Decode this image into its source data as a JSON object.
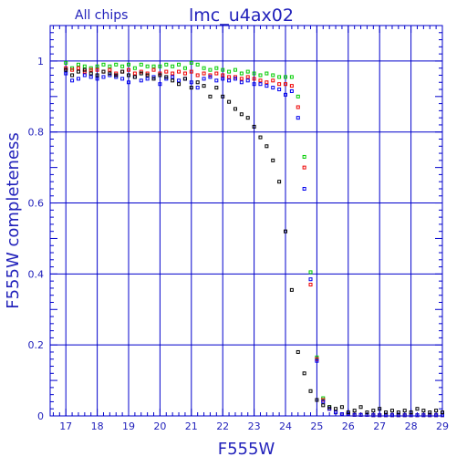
{
  "chart_data": {
    "type": "scatter",
    "title": "lmc_u4ax02",
    "subtitle": "All chips",
    "xlabel": "F555W",
    "ylabel": "F555W completeness",
    "xlim": [
      16.5,
      29
    ],
    "ylim": [
      0,
      1.1
    ],
    "grid": true,
    "x_ticks": [
      17,
      18,
      19,
      20,
      21,
      22,
      23,
      24,
      25,
      26,
      27,
      28,
      29
    ],
    "x_tick_labels": [
      "17",
      "18",
      "19",
      "20",
      "21",
      "22",
      "23",
      "24",
      "25",
      "26",
      "27",
      "28",
      "29"
    ],
    "y_ticks": [
      0,
      0.2,
      0.4,
      0.6,
      0.8,
      1
    ],
    "y_tick_labels": [
      "0",
      "0.2",
      "0.4",
      "0.6",
      "0.8",
      "1"
    ],
    "series": [
      {
        "color": "#00cc00",
        "x": [
          17.0,
          17.2,
          17.4,
          17.6,
          17.8,
          18.0,
          18.2,
          18.4,
          18.6,
          18.8,
          19.0,
          19.2,
          19.4,
          19.6,
          19.8,
          20.0,
          20.2,
          20.4,
          20.6,
          20.8,
          21.0,
          21.2,
          21.4,
          21.6,
          21.8,
          22.0,
          22.2,
          22.4,
          22.6,
          22.8,
          23.0,
          23.2,
          23.4,
          23.6,
          23.8,
          24.0,
          24.2,
          24.4,
          24.6,
          24.8,
          25.0,
          25.2,
          25.4,
          25.6,
          25.8,
          26.0,
          26.2,
          26.4,
          26.6,
          26.8,
          27.0,
          27.2,
          27.4,
          27.6,
          27.8,
          28.0,
          28.2,
          28.4,
          28.6,
          28.8,
          29.0
        ],
        "y": [
          0.995,
          0.98,
          0.99,
          0.985,
          0.98,
          0.985,
          0.99,
          0.985,
          0.99,
          0.985,
          0.99,
          0.98,
          0.99,
          0.985,
          0.985,
          0.985,
          0.99,
          0.985,
          0.99,
          0.98,
          0.995,
          0.99,
          0.98,
          0.975,
          0.98,
          0.975,
          0.97,
          0.975,
          0.965,
          0.97,
          0.965,
          0.96,
          0.965,
          0.96,
          0.955,
          0.955,
          0.955,
          0.9,
          0.73,
          0.405,
          0.165,
          0.05,
          0.025,
          0.01,
          0.005,
          0.005,
          0.003,
          0.003,
          0.003,
          0.002,
          0.002,
          0.002,
          0.002,
          0.002,
          0.002,
          0.002,
          0.002,
          0.002,
          0.002,
          0.002,
          0.002
        ]
      },
      {
        "color": "#ee0000",
        "x": [
          17.0,
          17.2,
          17.4,
          17.6,
          17.8,
          18.0,
          18.2,
          18.4,
          18.6,
          18.8,
          19.0,
          19.2,
          19.4,
          19.6,
          19.8,
          20.0,
          20.2,
          20.4,
          20.6,
          20.8,
          21.0,
          21.2,
          21.4,
          21.6,
          21.8,
          22.0,
          22.2,
          22.4,
          22.6,
          22.8,
          23.0,
          23.2,
          23.4,
          23.6,
          23.8,
          24.0,
          24.2,
          24.4,
          24.6,
          24.8,
          25.0,
          25.2,
          25.4,
          25.6,
          25.8,
          26.0,
          26.2,
          26.4,
          26.6,
          26.8,
          27.0,
          27.2,
          27.4,
          27.6,
          27.8,
          28.0,
          28.2,
          28.4,
          28.6,
          28.8,
          29.0
        ],
        "y": [
          0.98,
          0.975,
          0.98,
          0.97,
          0.975,
          0.975,
          0.97,
          0.975,
          0.965,
          0.97,
          0.975,
          0.965,
          0.97,
          0.965,
          0.975,
          0.965,
          0.97,
          0.965,
          0.97,
          0.965,
          0.97,
          0.96,
          0.965,
          0.96,
          0.965,
          0.96,
          0.955,
          0.955,
          0.95,
          0.955,
          0.95,
          0.945,
          0.94,
          0.945,
          0.935,
          0.935,
          0.93,
          0.87,
          0.7,
          0.37,
          0.16,
          0.045,
          0.02,
          0.01,
          0.005,
          0.005,
          0.003,
          0.003,
          0.003,
          0.002,
          0.002,
          0.002,
          0.002,
          0.002,
          0.002,
          0.002,
          0.002,
          0.002,
          0.002,
          0.002,
          0.002
        ]
      },
      {
        "color": "#0000ee",
        "x": [
          17.0,
          17.2,
          17.4,
          17.6,
          17.8,
          18.0,
          18.2,
          18.4,
          18.6,
          18.8,
          19.0,
          19.2,
          19.4,
          19.6,
          19.8,
          20.0,
          20.2,
          20.4,
          20.6,
          20.8,
          21.0,
          21.2,
          21.4,
          21.6,
          21.8,
          22.0,
          22.2,
          22.4,
          22.6,
          22.8,
          23.0,
          23.2,
          23.4,
          23.6,
          23.8,
          24.0,
          24.2,
          24.4,
          24.6,
          24.8,
          25.0,
          25.2,
          25.4,
          25.6,
          25.8,
          26.0,
          26.2,
          26.4,
          26.6,
          26.8,
          27.0,
          27.2,
          27.4,
          27.6,
          27.8,
          28.0,
          28.2,
          28.4,
          28.6,
          28.8,
          29.0
        ],
        "y": [
          0.965,
          0.945,
          0.95,
          0.96,
          0.955,
          0.95,
          0.955,
          0.96,
          0.955,
          0.95,
          0.94,
          0.955,
          0.945,
          0.95,
          0.955,
          0.935,
          0.95,
          0.955,
          0.945,
          0.95,
          0.94,
          0.925,
          0.95,
          0.955,
          0.945,
          0.95,
          0.945,
          0.95,
          0.94,
          0.945,
          0.935,
          0.935,
          0.93,
          0.925,
          0.92,
          0.905,
          0.915,
          0.84,
          0.64,
          0.385,
          0.155,
          0.04,
          0.02,
          0.01,
          0.005,
          0.005,
          0.003,
          0.003,
          0.003,
          0.002,
          0.002,
          0.002,
          0.002,
          0.002,
          0.002,
          0.002,
          0.002,
          0.002,
          0.002,
          0.002,
          0.002
        ]
      },
      {
        "color": "#000000",
        "x": [
          17.0,
          17.2,
          17.4,
          17.6,
          17.8,
          18.0,
          18.2,
          18.4,
          18.6,
          18.8,
          19.0,
          19.2,
          19.4,
          19.6,
          19.8,
          20.0,
          20.2,
          20.4,
          20.6,
          20.8,
          21.0,
          21.2,
          21.4,
          21.6,
          21.8,
          22.0,
          22.2,
          22.4,
          22.6,
          22.8,
          23.0,
          23.2,
          23.4,
          23.6,
          23.8,
          24.0,
          24.2,
          24.4,
          24.6,
          24.8,
          25.0,
          25.2,
          25.4,
          25.6,
          25.8,
          26.0,
          26.2,
          26.4,
          26.6,
          26.8,
          27.0,
          27.2,
          27.4,
          27.6,
          27.8,
          28.0,
          28.2,
          28.4,
          28.6,
          28.8,
          29.0
        ],
        "y": [
          0.975,
          0.96,
          0.97,
          0.975,
          0.965,
          0.96,
          0.97,
          0.965,
          0.96,
          0.97,
          0.96,
          0.955,
          0.965,
          0.96,
          0.95,
          0.96,
          0.955,
          0.945,
          0.935,
          0.95,
          0.925,
          0.94,
          0.93,
          0.9,
          0.925,
          0.9,
          0.885,
          0.865,
          0.85,
          0.84,
          0.815,
          0.785,
          0.76,
          0.72,
          0.66,
          0.52,
          0.355,
          0.18,
          0.12,
          0.07,
          0.045,
          0.03,
          0.025,
          0.02,
          0.025,
          0.01,
          0.015,
          0.025,
          0.01,
          0.015,
          0.02,
          0.01,
          0.015,
          0.01,
          0.015,
          0.01,
          0.02,
          0.015,
          0.01,
          0.015,
          0.01
        ]
      }
    ]
  }
}
